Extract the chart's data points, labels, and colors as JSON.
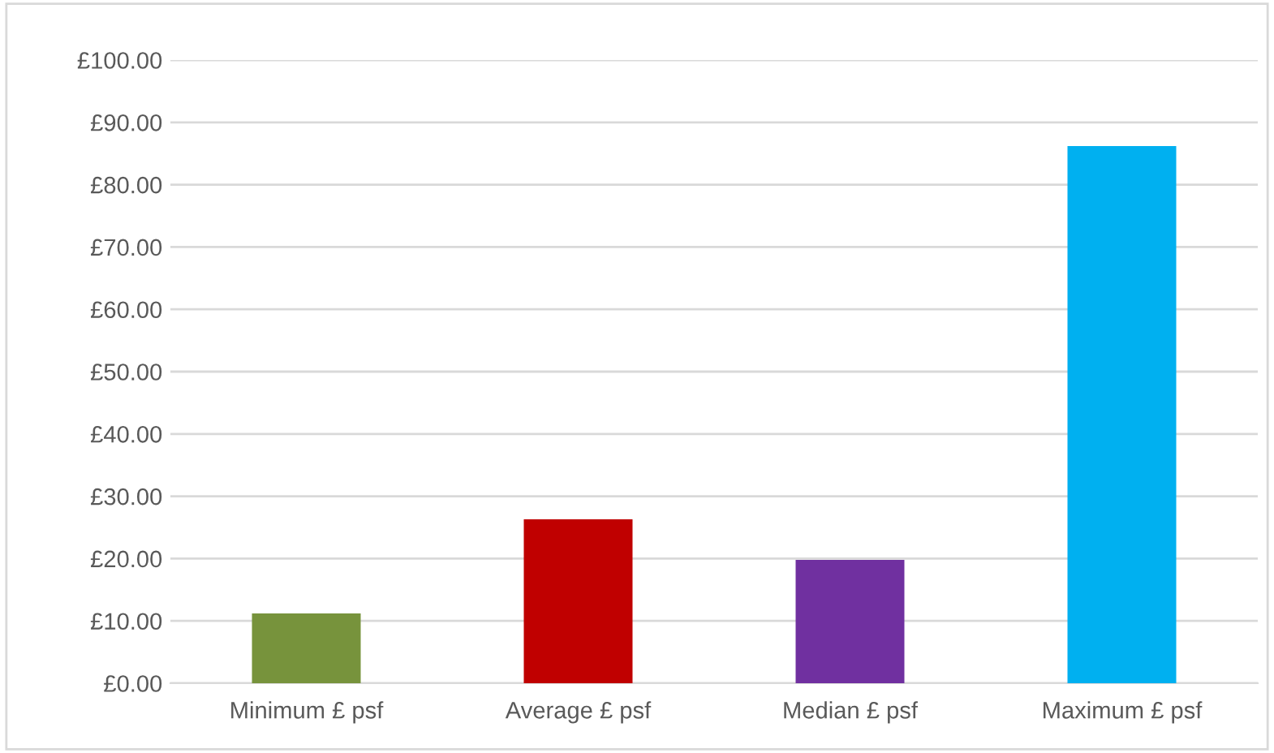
{
  "chart_data": {
    "type": "bar",
    "categories": [
      "Minimum £ psf",
      "Average £ psf",
      "Median £ psf",
      "Maximum £ psf"
    ],
    "values": [
      11.2,
      26.3,
      19.8,
      86.2
    ],
    "colors": [
      "#77933c",
      "#c00000",
      "#7030a0",
      "#00b0f0"
    ],
    "ylim": [
      0,
      100
    ],
    "yticks": [
      {
        "value": 0,
        "label": "£0.00"
      },
      {
        "value": 10,
        "label": "£10.00"
      },
      {
        "value": 20,
        "label": "£20.00"
      },
      {
        "value": 30,
        "label": "£30.00"
      },
      {
        "value": 40,
        "label": "£40.00"
      },
      {
        "value": 50,
        "label": "£50.00"
      },
      {
        "value": 60,
        "label": "£60.00"
      },
      {
        "value": 70,
        "label": "£70.00"
      },
      {
        "value": 80,
        "label": "£80.00"
      },
      {
        "value": 90,
        "label": "£90.00"
      },
      {
        "value": 100,
        "label": "£100.00"
      }
    ],
    "grid": "y",
    "legend": false
  }
}
